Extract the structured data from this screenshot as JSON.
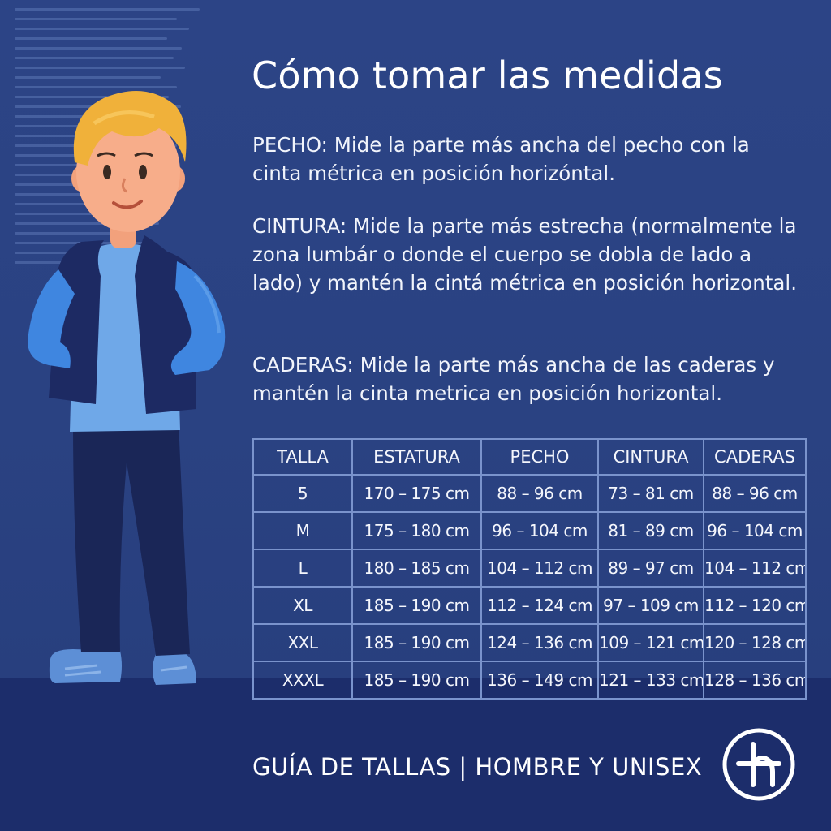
{
  "title": "Cómo tomar las medidas",
  "instructions": {
    "chest": {
      "label": "PECHO:",
      "text": "Mide la parte más ancha del pecho con la cinta métrica en posición horizóntal."
    },
    "waist": {
      "label": "CINTURA:",
      "text": "Mide la parte más estrecha (normalmente la zona lumbár o donde el cuerpo se dobla de lado a lado) y mantén la cintá métrica en posición horizontal."
    },
    "hips": {
      "label": "CADERAS:",
      "text": "Mide la parte más ancha de las caderas y mantén la cinta metrica en posición horizontal."
    }
  },
  "size_table": {
    "headers": [
      "TALLA",
      "ESTATURA",
      "PECHO",
      "CINTURA",
      "CADERAS"
    ],
    "rows": [
      [
        "5",
        "170 – 175 cm",
        "88 – 96 cm",
        "73 – 81 cm",
        "88 – 96 cm"
      ],
      [
        "M",
        "175 – 180 cm",
        "96 – 104 cm",
        "81 – 89 cm",
        "96 – 104 cm"
      ],
      [
        "L",
        "180 – 185 cm",
        "104 – 112 cm",
        "89 – 97 cm",
        "104 – 112 cm"
      ],
      [
        "XL",
        "185 – 190 cm",
        "112 – 124 cm",
        "97 – 109 cm",
        "112 – 120 cm"
      ],
      [
        "XXL",
        "185 – 190 cm",
        "124 – 136 cm",
        "109 – 121 cm",
        "120 – 128 cm"
      ],
      [
        "XXXL",
        "185 – 190 cm",
        "136 – 149 cm",
        "121 – 133 cm",
        "128 – 136 cm"
      ]
    ]
  },
  "footer": "GUÍA DE TALLAS | HOMBRE Y UNISEX",
  "icons": {
    "character": "person-illustration-icon",
    "logo": "brand-logo-icon"
  },
  "colors": {
    "background": "#2a4080",
    "floor": "#1c2d6b",
    "table_border": "#7a93cc",
    "text": "#ffffff"
  }
}
